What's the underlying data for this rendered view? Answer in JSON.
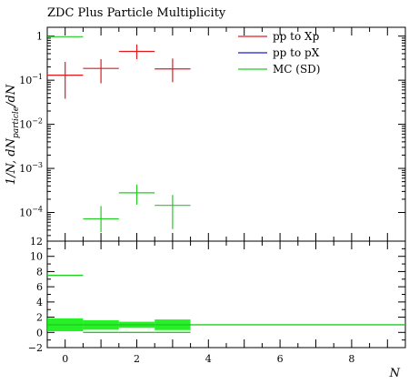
{
  "chart_data": {
    "type": "scatter",
    "title": "ZDC Plus Particle Multiplicity",
    "xlabel": "N",
    "ylabel": "1/N, dN_particle/dN",
    "ylabel_main": "1/N, dN",
    "ylabel_sub": "particle",
    "ylabel_tail": "/dN",
    "x_range": [
      -0.5,
      9.5
    ],
    "x_ticks": [
      0,
      2,
      4,
      6,
      8
    ],
    "main_y_range_log10": [
      -4.65,
      0.2
    ],
    "main_y_ticks": [
      {
        "exp": 0,
        "base": "1",
        "power": ""
      },
      {
        "exp": -1,
        "base": "10",
        "power": "−1"
      },
      {
        "exp": -2,
        "base": "10",
        "power": "−2"
      },
      {
        "exp": -3,
        "base": "10",
        "power": "−3"
      },
      {
        "exp": -4,
        "base": "10",
        "power": "−4"
      }
    ],
    "ratio_y_range": [
      -2,
      12
    ],
    "ratio_y_ticks": [
      -2,
      0,
      2,
      4,
      6,
      8,
      10,
      12
    ],
    "legend": {
      "placement": "top-right",
      "entries": [
        "pp to Xp",
        "pp to pX",
        "MC (SD)"
      ]
    },
    "series": [
      {
        "name": "pp to Xp",
        "color": "#e31a1c",
        "points": [
          {
            "x": 0,
            "xerr": 0.5,
            "y": 0.13,
            "ylo": 0.038,
            "yhi": 0.26
          },
          {
            "x": 1,
            "xerr": 0.5,
            "y": 0.185,
            "ylo": 0.085,
            "yhi": 0.3
          },
          {
            "x": 2,
            "xerr": 0.5,
            "y": 0.45,
            "ylo": 0.3,
            "yhi": 0.65
          },
          {
            "x": 3,
            "xerr": 0.5,
            "y": 0.18,
            "ylo": 0.09,
            "yhi": 0.31
          }
        ]
      },
      {
        "name": "pp to pX",
        "color": "#1f1fd8",
        "points": []
      },
      {
        "name": "MC (SD)",
        "color": "#22cc22",
        "points": [
          {
            "x": 0,
            "xerr": 0.5,
            "y": 0.97,
            "ylo": 0.97,
            "yhi": 0.97
          },
          {
            "x": 1,
            "xerr": 0.5,
            "y": 7.2e-05,
            "ylo": 3.6e-05,
            "yhi": 0.00014
          },
          {
            "x": 2,
            "xerr": 0.5,
            "y": 0.00028,
            "ylo": 0.00015,
            "yhi": 0.00043
          },
          {
            "x": 3,
            "xerr": 0.5,
            "y": 0.000145,
            "ylo": 4.2e-05,
            "yhi": 0.00025
          }
        ]
      }
    ],
    "ratio": {
      "reference_color": "#e31a1c",
      "mc_color": "#22cc22",
      "band_color": "#00ee00",
      "mc_ratio_segments": [
        {
          "xlo": -0.5,
          "xhi": 0.5,
          "y": 7.5
        },
        {
          "xlo": 0.5,
          "xhi": 1.5,
          "y": 0.0
        },
        {
          "xlo": 1.5,
          "xhi": 2.5,
          "y": 0.0
        },
        {
          "xlo": 2.5,
          "xhi": 3.5,
          "y": 0.0
        }
      ],
      "bands": [
        {
          "xlo": -0.5,
          "xhi": 0.5,
          "ylo": 0.15,
          "yhi": 1.85
        },
        {
          "xlo": 0.5,
          "xhi": 1.5,
          "ylo": 0.35,
          "yhi": 1.6
        },
        {
          "xlo": 1.5,
          "xhi": 2.5,
          "ylo": 0.6,
          "yhi": 1.4
        },
        {
          "xlo": 2.5,
          "xhi": 3.5,
          "ylo": 0.3,
          "yhi": 1.7
        }
      ],
      "unity_line": 1
    }
  }
}
